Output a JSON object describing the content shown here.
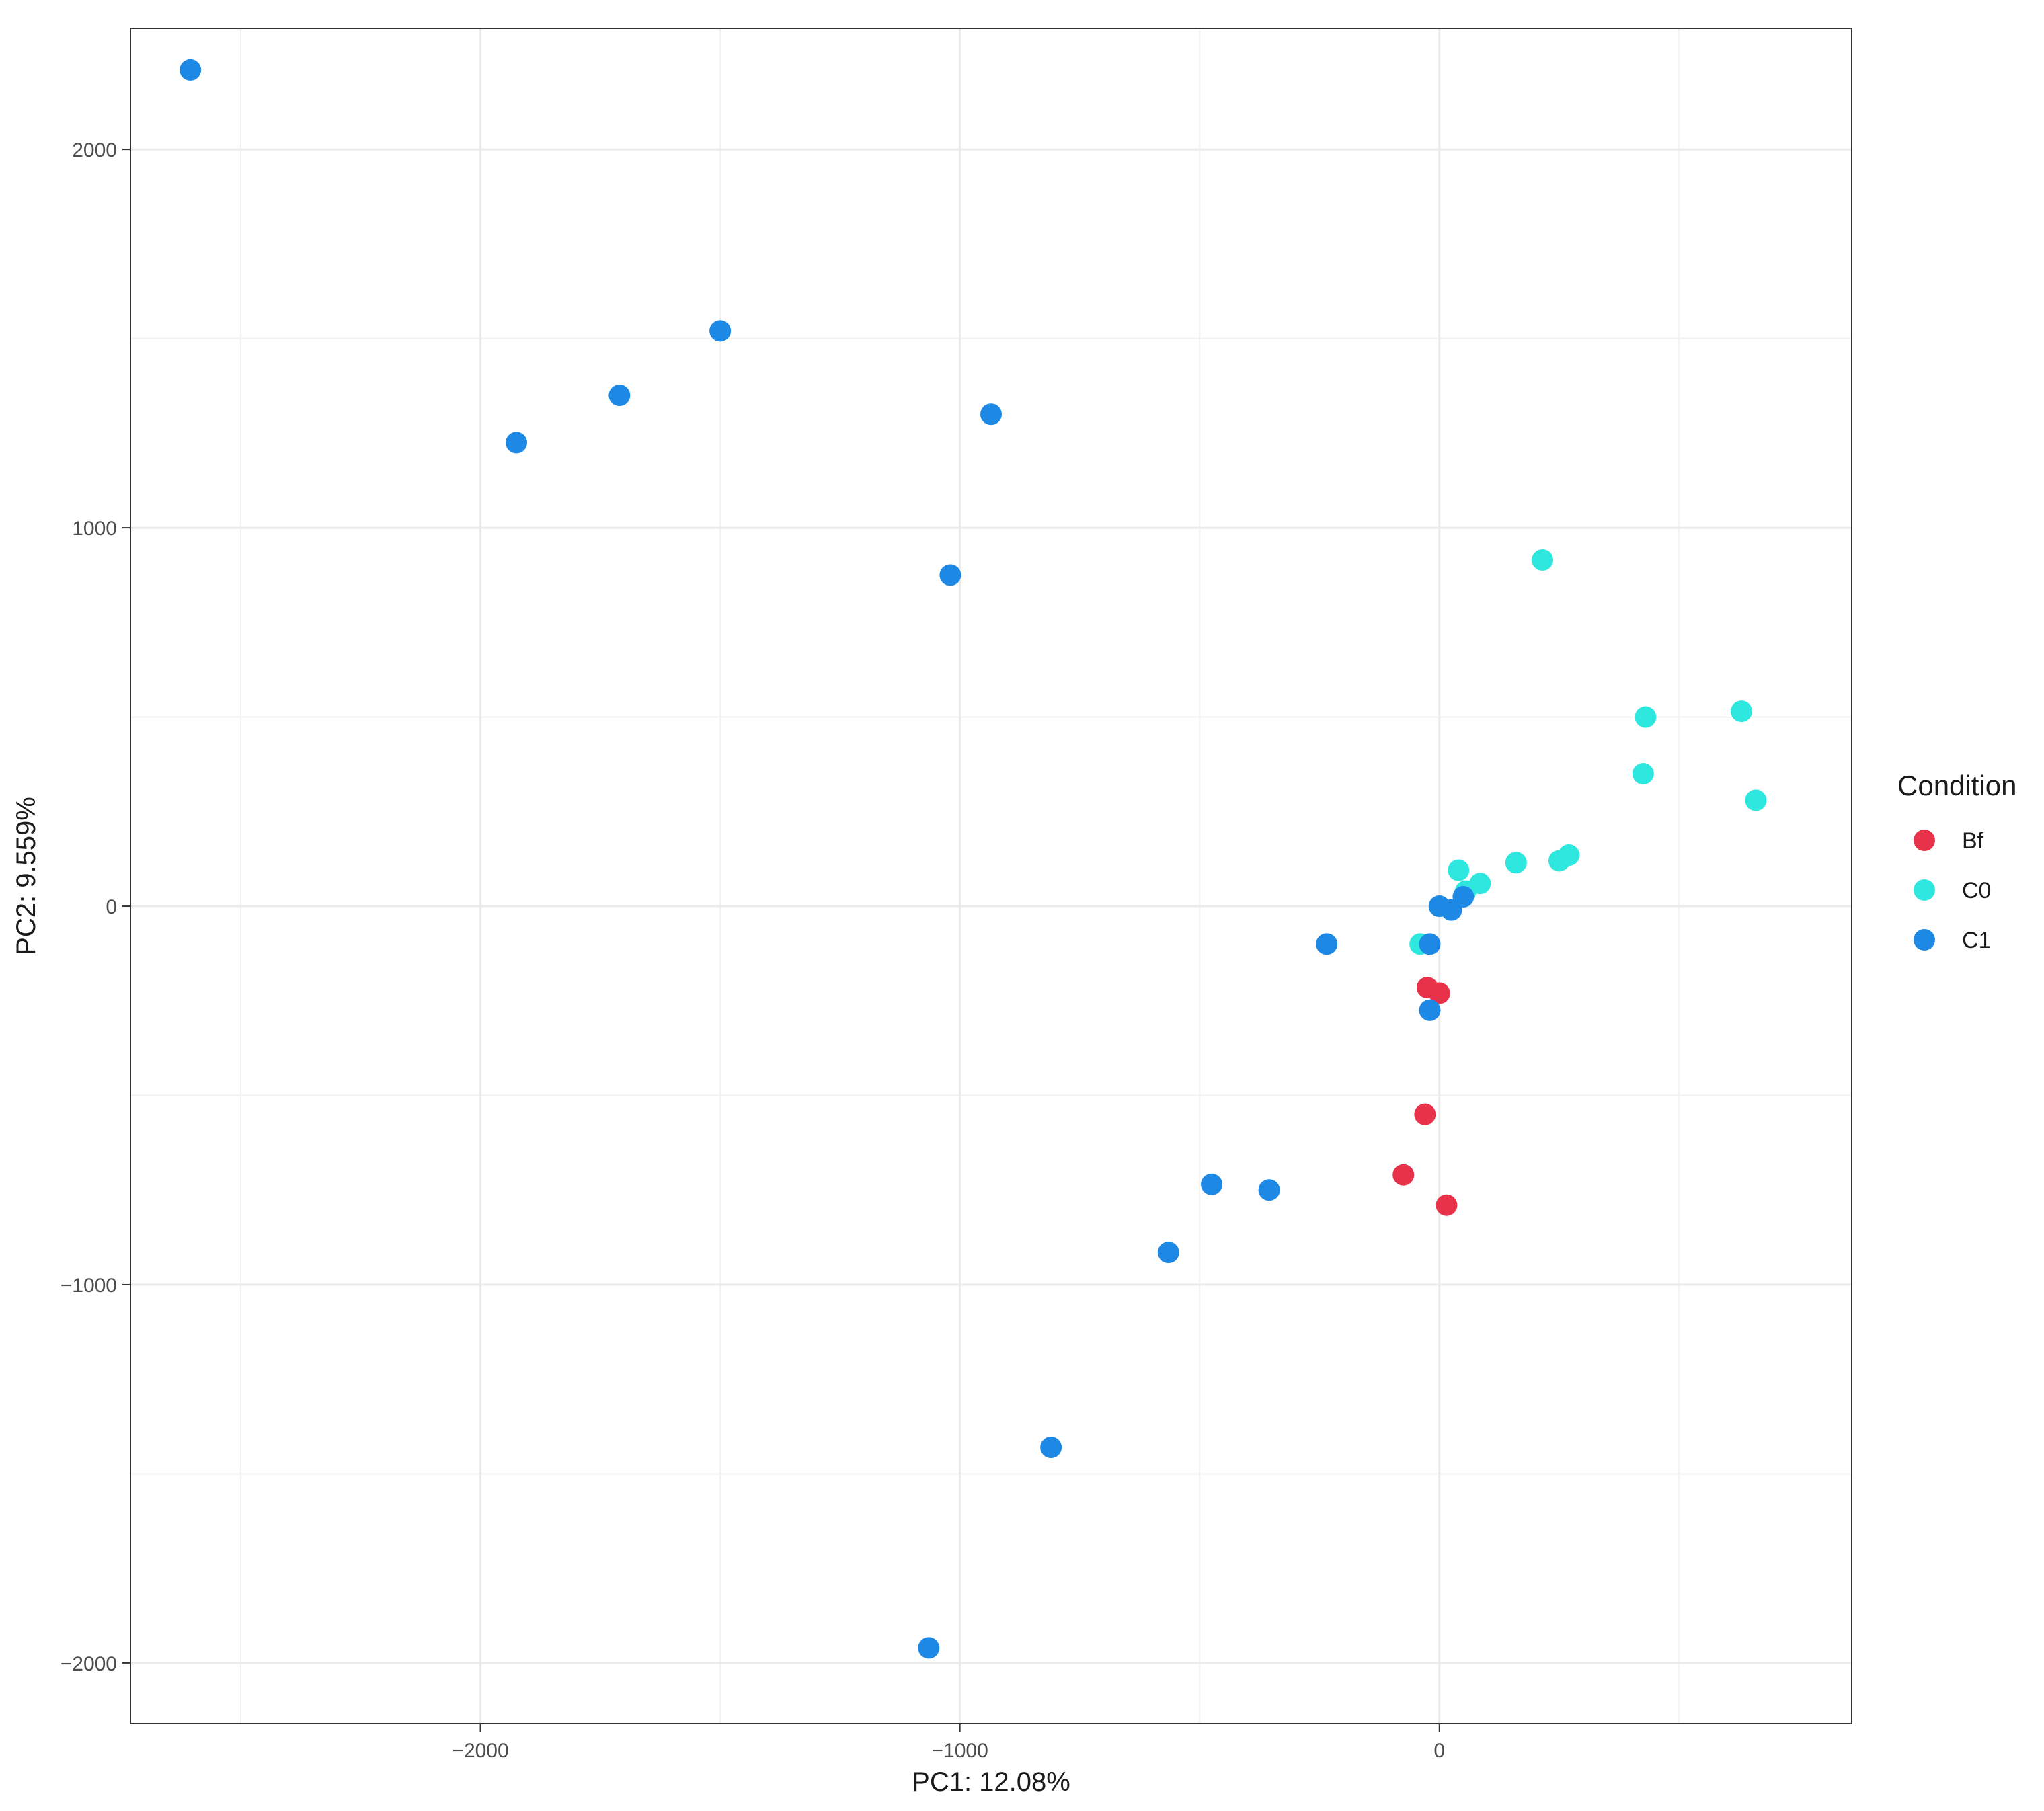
{
  "chart_data": {
    "type": "scatter",
    "xlabel": "PC1: 12.08%",
    "ylabel": "PC2: 9.559%",
    "xlim": [
      -2730,
      860
    ],
    "ylim": [
      -2160,
      2320
    ],
    "x_ticks": [
      -2000,
      -1000,
      0
    ],
    "x_tick_labels": [
      "−2000",
      "−1000",
      "0"
    ],
    "x_minor_ticks": [
      -2500,
      -1500,
      -500,
      500
    ],
    "y_ticks": [
      -2000,
      -1000,
      0,
      1000,
      2000
    ],
    "y_tick_labels": [
      "−2000",
      "−1000",
      "0",
      "1000",
      "2000"
    ],
    "y_minor_ticks": [
      -1500,
      -500,
      500,
      1500
    ],
    "grid": true,
    "legend": {
      "title": "Condition",
      "position": "right",
      "entries": [
        {
          "label": "Bf",
          "color": "#E8324A"
        },
        {
          "label": "C0",
          "color": "#2EE8E0"
        },
        {
          "label": "C1",
          "color": "#1E88E5"
        }
      ]
    },
    "series": [
      {
        "name": "Bf",
        "color": "#E8324A",
        "points": [
          [
            -25,
            -215
          ],
          [
            0,
            -230
          ],
          [
            -30,
            -550
          ],
          [
            -75,
            -710
          ],
          [
            15,
            -790
          ]
        ]
      },
      {
        "name": "C0",
        "color": "#2EE8E0",
        "points": [
          [
            215,
            915
          ],
          [
            430,
            500
          ],
          [
            630,
            515
          ],
          [
            425,
            350
          ],
          [
            660,
            280
          ],
          [
            270,
            135
          ],
          [
            250,
            120
          ],
          [
            160,
            115
          ],
          [
            40,
            95
          ],
          [
            85,
            60
          ],
          [
            55,
            40
          ],
          [
            -40,
            -100
          ]
        ]
      },
      {
        "name": "C1",
        "color": "#1E88E5",
        "points": [
          [
            -2605,
            2210
          ],
          [
            -1500,
            1520
          ],
          [
            -1710,
            1350
          ],
          [
            -1925,
            1225
          ],
          [
            -935,
            1300
          ],
          [
            -1020,
            875
          ],
          [
            0,
            0
          ],
          [
            25,
            -10
          ],
          [
            50,
            25
          ],
          [
            -20,
            -100
          ],
          [
            -235,
            -100
          ],
          [
            -20,
            -275
          ],
          [
            -475,
            -735
          ],
          [
            -355,
            -750
          ],
          [
            -565,
            -915
          ],
          [
            -810,
            -1430
          ],
          [
            -1065,
            -1960
          ]
        ]
      }
    ]
  }
}
